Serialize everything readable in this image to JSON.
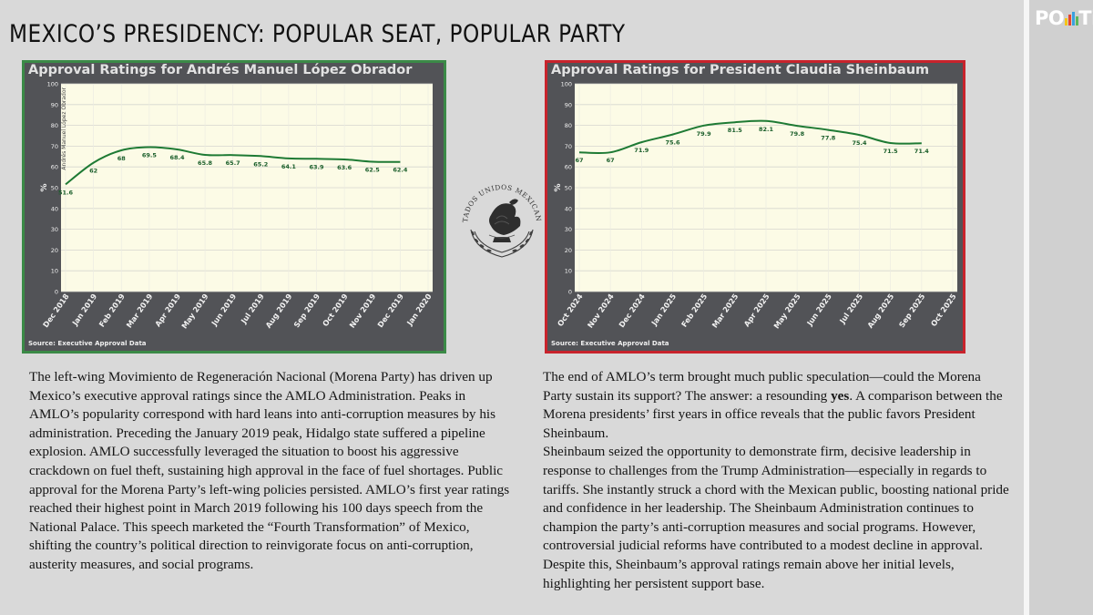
{
  "page": {
    "title": "MEXICO’S PRESIDENCY: POPULAR SEAT, POPULAR PARTY",
    "logo_text_left": "PO",
    "logo_text_right": "Tik",
    "logo_bar_colors": [
      "#f5c518",
      "#e8452c",
      "#3aa0e0",
      "#5cb85c"
    ]
  },
  "seal": {
    "text": "ESTADOS UNIDOS MEXICANOS"
  },
  "charts": {
    "amlo": {
      "title": "Approval Ratings for Andrés Manuel López Obrador",
      "source": "Source: Executive Approval Data",
      "border_color": "#3b8a47"
    },
    "sheinbaum": {
      "title": "Approval Ratings for President Claudia Sheinbaum",
      "source": "Source: Executive Approval Data",
      "border_color": "#c8232c"
    }
  },
  "chart_data": [
    {
      "type": "line",
      "title": "Approval Ratings for Andrés Manuel López Obrador",
      "ylabel": "%",
      "series_label": "Andrés Manuel López Obrador",
      "ylim": [
        0,
        100
      ],
      "yticks": [
        0,
        10,
        20,
        30,
        40,
        50,
        60,
        70,
        80,
        90,
        100
      ],
      "grid": true,
      "line_color": "#1e7a34",
      "categories": [
        "Dec 2018",
        "Jan 2019",
        "Feb 2019",
        "Mar 2019",
        "Apr 2019",
        "May 2019",
        "Jun 2019",
        "Jul 2019",
        "Aug 2019",
        "Sep 2019",
        "Oct 2019",
        "Nov 2019",
        "Dec 2019",
        "Jan 2020"
      ],
      "points": [
        {
          "x": "Dec 2018",
          "y": 51.6
        },
        {
          "x": "Jan 2019",
          "y": 62
        },
        {
          "x": "Feb 2019",
          "y": 68
        },
        {
          "x": "Mar 2019",
          "y": 69.5
        },
        {
          "x": "Apr 2019",
          "y": 68.4
        },
        {
          "x": "May 2019",
          "y": 65.8
        },
        {
          "x": "Jun 2019",
          "y": 65.7
        },
        {
          "x": "Jul 2019",
          "y": 65.2
        },
        {
          "x": "Aug 2019",
          "y": 64.1
        },
        {
          "x": "Sep 2019",
          "y": 63.9
        },
        {
          "x": "Oct 2019",
          "y": 63.6
        },
        {
          "x": "Nov 2019",
          "y": 62.5
        },
        {
          "x": "Dec 2019",
          "y": 62.4
        }
      ],
      "source": "Source: Executive Approval Data"
    },
    {
      "type": "line",
      "title": "Approval Ratings for President Claudia Sheinbaum",
      "ylabel": "%",
      "ylim": [
        0,
        100
      ],
      "yticks": [
        0,
        10,
        20,
        30,
        40,
        50,
        60,
        70,
        80,
        90,
        100
      ],
      "grid": true,
      "line_color": "#1e7a34",
      "categories": [
        "Oct 2024",
        "Nov 2024",
        "Dec 2024",
        "Jan 2025",
        "Feb 2025",
        "Mar 2025",
        "Apr 2025",
        "May 2025",
        "Jun 2025",
        "Jul 2025",
        "Aug 2025",
        "Sep 2025",
        "Oct 2025"
      ],
      "points": [
        {
          "x": "Oct 2024",
          "y": 67
        },
        {
          "x": "Nov 2024",
          "y": 67
        },
        {
          "x": "Dec 2024",
          "y": 71.9
        },
        {
          "x": "Jan 2025",
          "y": 75.6
        },
        {
          "x": "Feb 2025",
          "y": 79.9
        },
        {
          "x": "Mar 2025",
          "y": 81.5
        },
        {
          "x": "Apr 2025",
          "y": 82.1
        },
        {
          "x": "May 2025",
          "y": 79.8
        },
        {
          "x": "Jun 2025",
          "y": 77.8
        },
        {
          "x": "Jul 2025",
          "y": 75.4
        },
        {
          "x": "Aug 2025",
          "y": 71.5
        },
        {
          "x": "Sep 2025",
          "y": 71.4
        }
      ],
      "source": "Source: Executive Approval Data"
    }
  ],
  "text": {
    "left_paragraph": "The left-wing Movimiento de Regeneración Nacional (Morena Party) has driven up Mexico’s executive approval ratings since the AMLO Administration. Peaks in AMLO’s popularity correspond with hard leans into anti-corruption measures by his administration. Preceding the January 2019 peak, Hidalgo state suffered a pipeline explosion. AMLO successfully leveraged the situation to boost his aggressive crackdown on fuel theft, sustaining high approval in the face of fuel shortages. Public approval for the Morena Party’s left-wing policies persisted. AMLO’s first year ratings reached their highest point in March 2019 following his 100 days speech from the National Palace. This speech marketed the “Fourth Transformation” of Mexico, shifting the country’s political direction to reinvigorate focus on anti-corruption, austerity measures, and social programs.",
    "right_p1_before": "The end of AMLO’s term brought much public speculation—could the Morena Party sustain its support? The answer: a resounding ",
    "right_p1_bold": "yes",
    "right_p1_after": ". A comparison between the Morena presidents’ first years in office reveals that the public favors President Sheinbaum.",
    "right_p2": "Sheinbaum seized the opportunity to demonstrate firm, decisive leadership in response to challenges from the Trump Administration—especially in regards to tariffs. She instantly struck a chord with the Mexican public, boosting national pride and confidence in her leadership. The Sheinbaum Administration continues to champion the party’s anti-corruption measures and social programs. However, controversial judicial reforms have contributed to a modest decline in approval. Despite this, Sheinbaum’s approval ratings remain above her initial levels, highlighting her persistent support base."
  }
}
